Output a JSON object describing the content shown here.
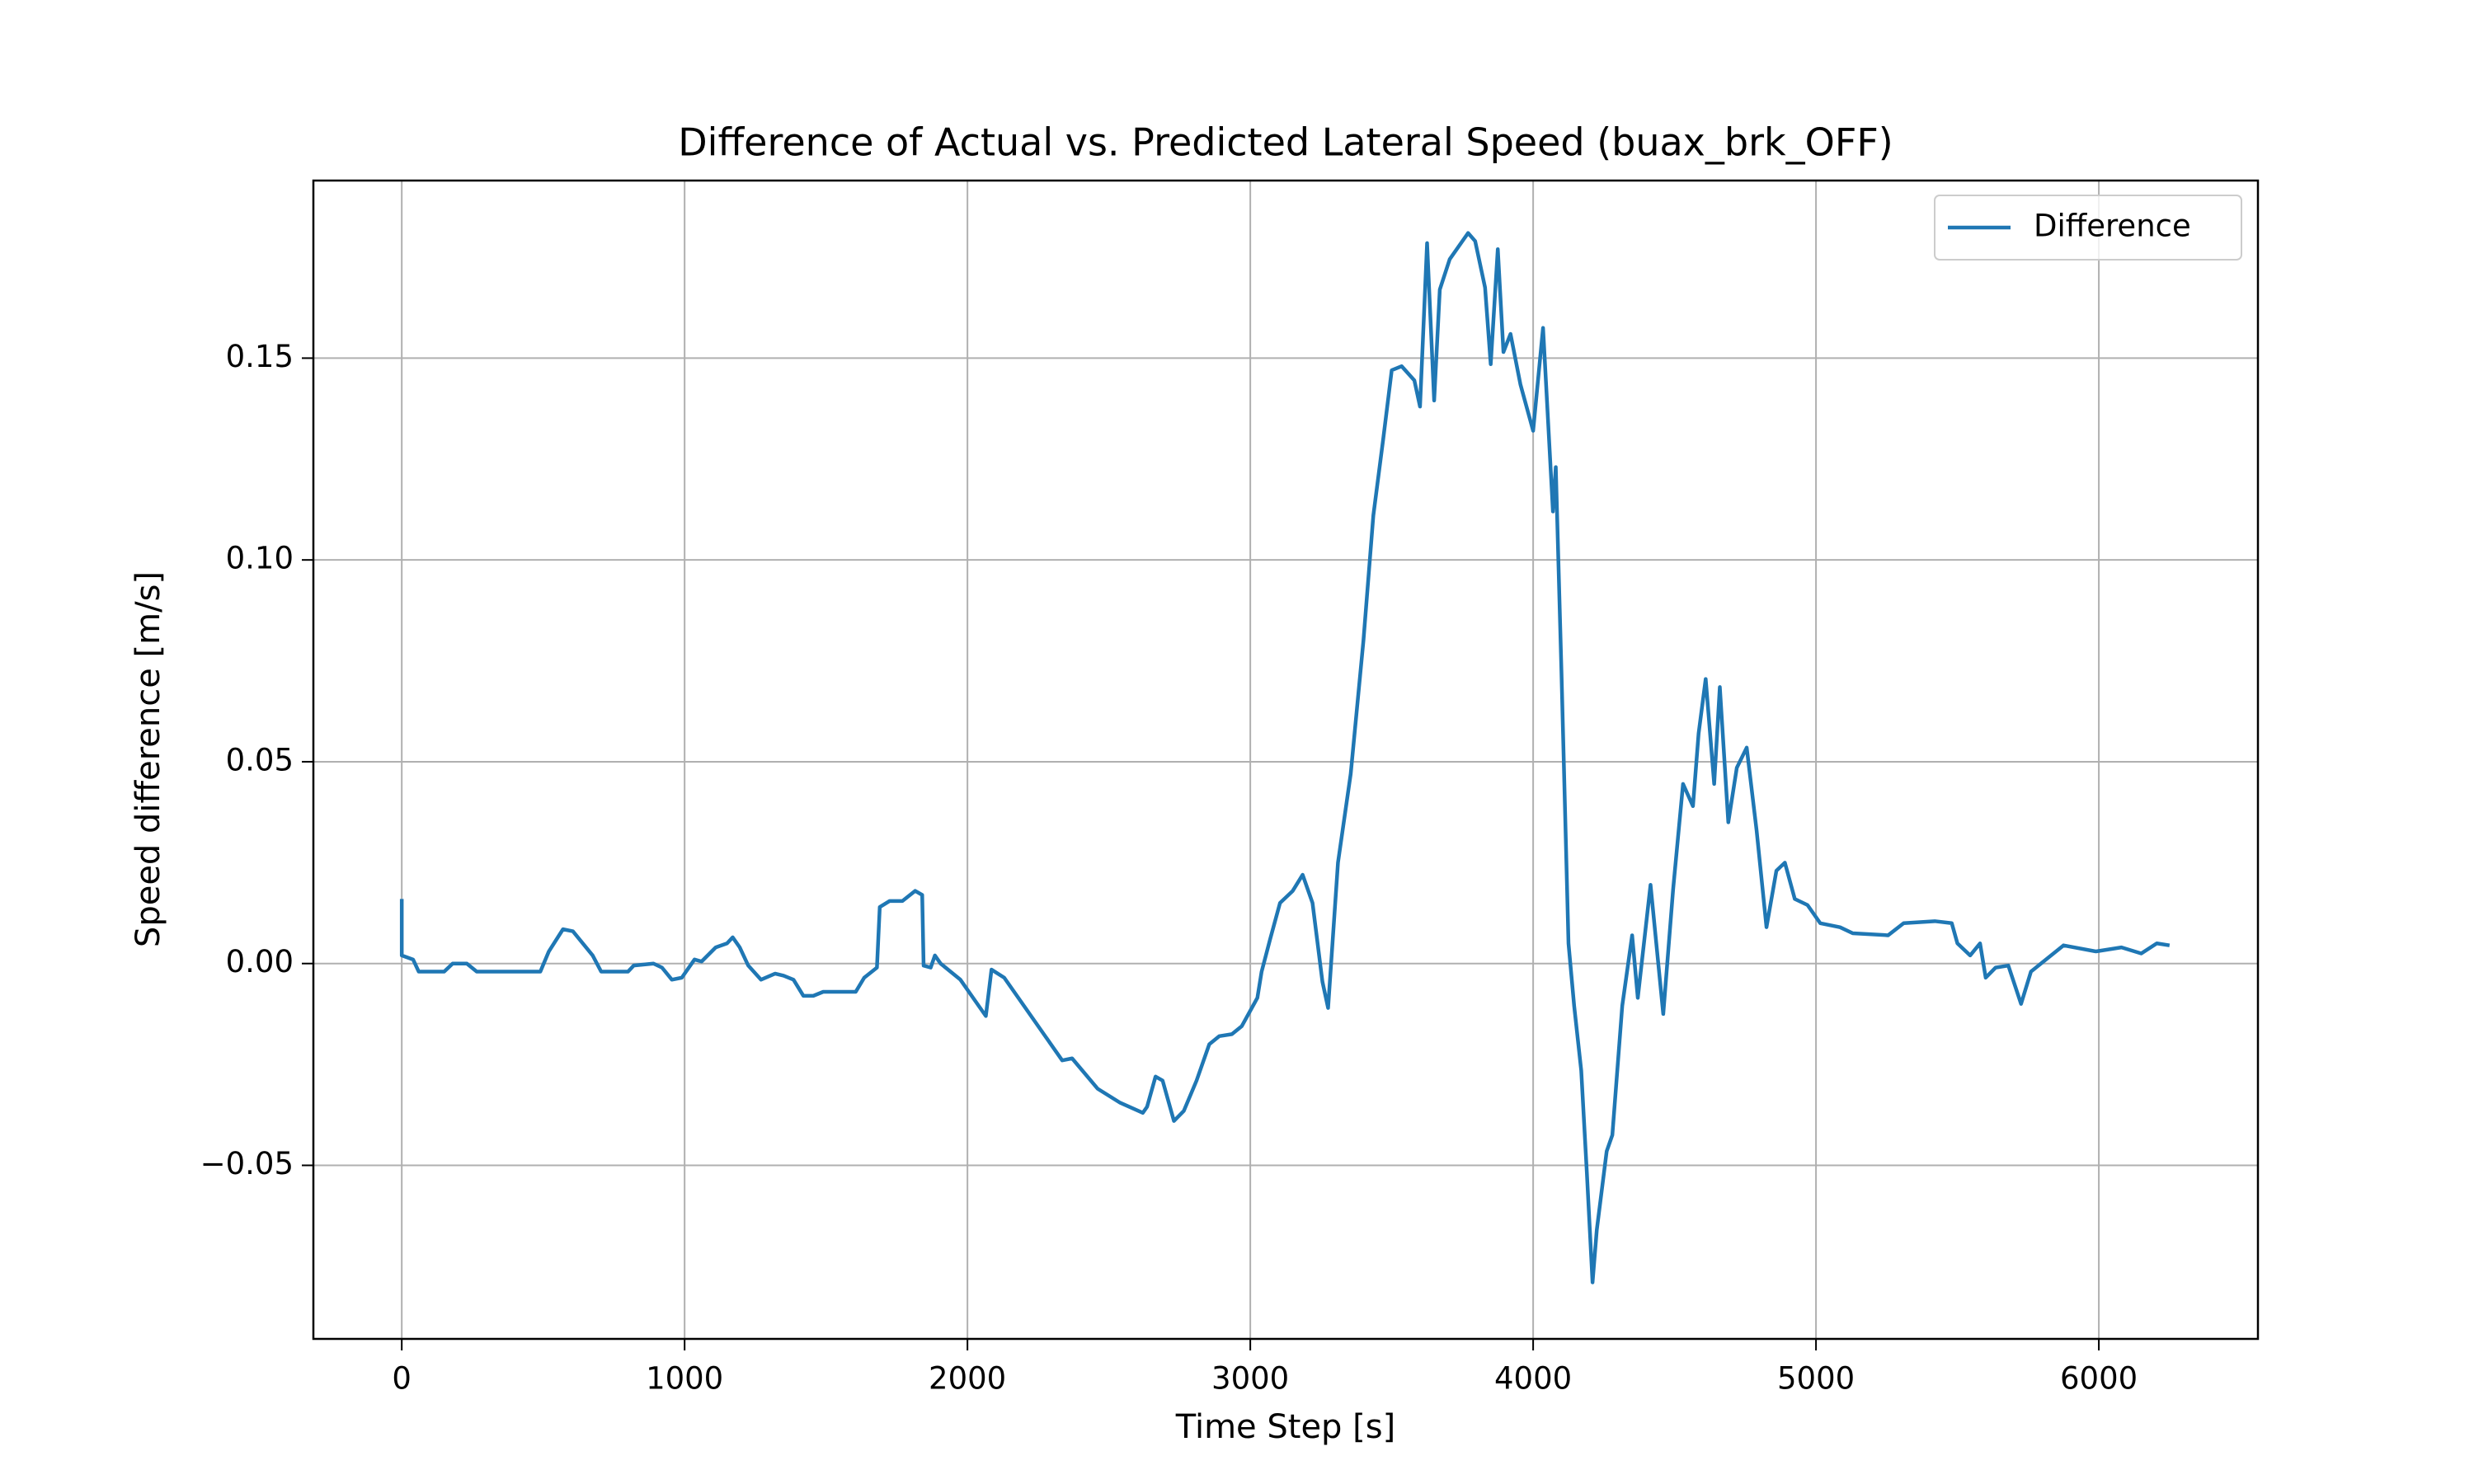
{
  "chart_data": {
    "type": "line",
    "title": "Difference of Actual vs. Predicted Lateral Speed (buax_brk_OFF)",
    "xlabel": "Time Step [s]",
    "ylabel": "Speed difference [m/s]",
    "x": [
      0,
      0,
      40,
      60,
      150,
      180,
      230,
      265,
      490,
      520,
      570,
      605,
      675,
      705,
      800,
      820,
      890,
      920,
      955,
      990,
      1035,
      1060,
      1110,
      1150,
      1170,
      1195,
      1225,
      1270,
      1320,
      1350,
      1385,
      1420,
      1455,
      1490,
      1535,
      1605,
      1635,
      1680,
      1690,
      1725,
      1770,
      1815,
      1840,
      1845,
      1870,
      1885,
      1905,
      1975,
      2030,
      2065,
      2085,
      2130,
      2335,
      2370,
      2460,
      2540,
      2620,
      2635,
      2665,
      2690,
      2730,
      2765,
      2810,
      2855,
      2890,
      2935,
      2970,
      3025,
      3040,
      3070,
      3105,
      3150,
      3185,
      3220,
      3255,
      3275,
      3310,
      3355,
      3400,
      3435,
      3470,
      3500,
      3535,
      3580,
      3600,
      3625,
      3650,
      3670,
      3705,
      3770,
      3795,
      3830,
      3850,
      3875,
      3895,
      3920,
      3955,
      4000,
      4035,
      4070,
      4080,
      4100,
      4125,
      4145,
      4170,
      4190,
      4210,
      4225,
      4260,
      4280,
      4315,
      4350,
      4370,
      4415,
      4460,
      4495,
      4530,
      4565,
      4585,
      4610,
      4640,
      4660,
      4690,
      4720,
      4755,
      4790,
      4825,
      4860,
      4890,
      4925,
      4970,
      5015,
      5085,
      5130,
      5255,
      5310,
      5420,
      5480,
      5500,
      5545,
      5580,
      5600,
      5635,
      5680,
      5725,
      5760,
      5875,
      5990,
      6080,
      6150,
      6205,
      6250
    ],
    "series": [
      {
        "name": "Difference",
        "color": "#1f77b4",
        "values": [
          0.016,
          0.002,
          0.001,
          -0.002,
          -0.002,
          0,
          0,
          -0.002,
          -0.002,
          0.003,
          0.0085,
          0.008,
          0.002,
          -0.002,
          -0.002,
          -0.0005,
          0,
          -0.001,
          -0.004,
          -0.0035,
          0.001,
          0.0005,
          0.004,
          0.005,
          0.0065,
          0.004,
          -0.0005,
          -0.004,
          -0.0025,
          -0.003,
          -0.004,
          -0.008,
          -0.008,
          -0.007,
          -0.007,
          -0.007,
          -0.0035,
          -0.001,
          0.014,
          0.0155,
          0.0155,
          0.018,
          0.017,
          -0.0005,
          -0.001,
          0.002,
          0,
          -0.004,
          -0.0095,
          -0.013,
          -0.0015,
          -0.0035,
          -0.024,
          -0.0235,
          -0.031,
          -0.0345,
          -0.037,
          -0.0355,
          -0.028,
          -0.029,
          -0.039,
          -0.0365,
          -0.029,
          -0.02,
          -0.018,
          -0.0175,
          -0.0155,
          -0.0085,
          -0.002,
          0.006,
          0.015,
          0.018,
          0.022,
          0.015,
          -0.0045,
          -0.011,
          0.025,
          0.047,
          0.08,
          0.111,
          0.13,
          0.147,
          0.148,
          0.1445,
          0.138,
          0.1785,
          0.1395,
          0.167,
          0.1745,
          0.181,
          0.179,
          0.1675,
          0.1485,
          0.177,
          0.1515,
          0.156,
          0.1435,
          0.132,
          0.1575,
          0.112,
          0.123,
          0.0725,
          0.005,
          -0.0105,
          -0.0265,
          -0.052,
          -0.079,
          -0.066,
          -0.0465,
          -0.0425,
          -0.0105,
          0.007,
          -0.0085,
          0.0195,
          -0.0125,
          0.0185,
          0.0445,
          0.039,
          0.057,
          0.0705,
          0.0445,
          0.0685,
          0.035,
          0.0485,
          0.0535,
          0.033,
          0.009,
          0.023,
          0.025,
          0.016,
          0.0145,
          0.01,
          0.009,
          0.0075,
          0.007,
          0.01,
          0.0105,
          0.01,
          0.005,
          0.002,
          0.005,
          -0.0035,
          -0.001,
          -0.0005,
          -0.01,
          -0.002,
          0.0045,
          0.003,
          0.004,
          0.0025,
          0.005,
          0.0045
        ]
      }
    ],
    "xlim": [
      -312.5,
      6562.5
    ],
    "ylim": [
      -0.093,
      0.194
    ],
    "xticks": [
      0,
      1000,
      2000,
      3000,
      4000,
      5000,
      6000
    ],
    "yticks": [
      {
        "value": -0.05,
        "label": "−0.05"
      },
      {
        "value": 0,
        "label": "0.00"
      },
      {
        "value": 0.05,
        "label": "0.05"
      },
      {
        "value": 0.1,
        "label": "0.10"
      },
      {
        "value": 0.15,
        "label": "0.15"
      }
    ],
    "grid": true,
    "legend": "upper right"
  }
}
